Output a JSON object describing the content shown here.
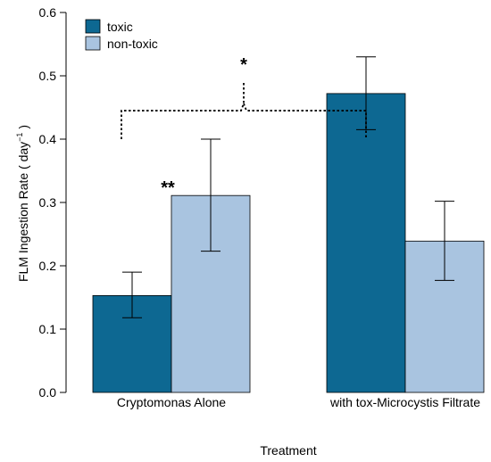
{
  "chart_data": {
    "type": "bar",
    "categories": [
      "Cryptomonas Alone",
      "with tox-Microcystis Filtrate"
    ],
    "series": [
      {
        "name": "toxic",
        "color": "#0d6892",
        "values": [
          0.153,
          0.472
        ],
        "error_low": [
          0.118,
          0.415
        ],
        "error_high": [
          0.19,
          0.53
        ]
      },
      {
        "name": "non-toxic",
        "color": "#a9c4e0",
        "values": [
          0.311,
          0.239
        ],
        "error_low": [
          0.223,
          0.177
        ],
        "error_high": [
          0.4,
          0.302
        ]
      }
    ],
    "xlabel": "Treatment",
    "ylabel": "FLM Ingestion Rate ( day",
    "ylabel_superscript": "−1",
    "ylabel_suffix": " )",
    "ylim": [
      0,
      0.6
    ],
    "yticks": [
      "0.0",
      "0.1",
      "0.2",
      "0.3",
      "0.4",
      "0.5",
      "0.6"
    ],
    "ytick_values": [
      0,
      0.1,
      0.2,
      0.3,
      0.4,
      0.5,
      0.6
    ],
    "legend_position": "top-left",
    "grid": false,
    "annotations": [
      {
        "text": "**",
        "category": 0,
        "series": 1
      },
      {
        "text": "*",
        "type": "bracket",
        "from_category": 0,
        "to_category": 1
      }
    ]
  }
}
